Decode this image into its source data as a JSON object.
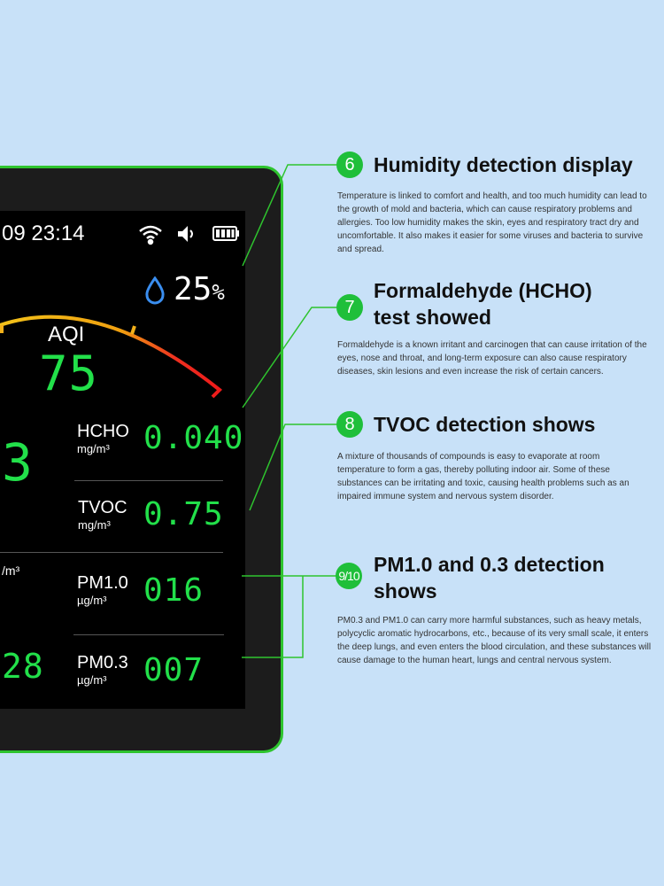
{
  "colors": {
    "background": "#c8e1f8",
    "accent": "#1fbf3a",
    "digits": "#22e04a"
  },
  "device": {
    "date_partial": "09",
    "time": "23:14",
    "status_icons": [
      "wifi-icon",
      "speaker-icon",
      "battery-icon"
    ],
    "humidity": "25",
    "humidity_unit": "%",
    "aqi_label": "AQI",
    "aqi_value": "75",
    "left_partial": {
      "big_value": "3",
      "unit": "/m³",
      "bottom_value": "28"
    },
    "readings": [
      {
        "label": "HCHO",
        "unit": "mg/m³",
        "value": "0.040"
      },
      {
        "label": "TVOC",
        "unit": "mg/m³",
        "value": "0.75"
      },
      {
        "label": "PM1.0",
        "unit": "µg/m³",
        "value": "016"
      },
      {
        "label": "PM0.3",
        "unit": "µg/m³",
        "value": "007"
      }
    ]
  },
  "features": [
    {
      "number": "6",
      "title": "Humidity detection display",
      "text": "Temperature is linked to comfort and health, and too much humidity can lead to the growth of mold and bacteria, which can cause respiratory problems and allergies. Too low humidity makes the skin, eyes and respiratory tract dry and uncomfortable. It also makes it easier for some viruses and bacteria to survive and spread."
    },
    {
      "number": "7",
      "title": "Formaldehyde (HCHO) test showed",
      "text": "Formaldehyde is a known irritant and carcinogen that can cause irritation of the eyes, nose and throat, and long-term exposure can also cause respiratory diseases, skin lesions and even increase the risk of certain cancers."
    },
    {
      "number": "8",
      "title": "TVOC detection shows",
      "text": "A mixture of thousands of compounds is easy to evaporate at room temperature to form a gas, thereby polluting indoor air. Some of these substances can be irritating and toxic, causing health problems such as an impaired immune system and nervous system disorder."
    },
    {
      "number": "9/10",
      "title": "PM1.0 and 0.3 detection shows",
      "text": "PM0.3 and PM1.0 can carry more harmful substances, such as heavy metals, polycyclic aromatic hydrocarbons, etc., because of its very small scale, it enters the deep lungs, and even enters the blood circulation, and these substances will cause damage to the human heart, lungs and central nervous system."
    }
  ]
}
